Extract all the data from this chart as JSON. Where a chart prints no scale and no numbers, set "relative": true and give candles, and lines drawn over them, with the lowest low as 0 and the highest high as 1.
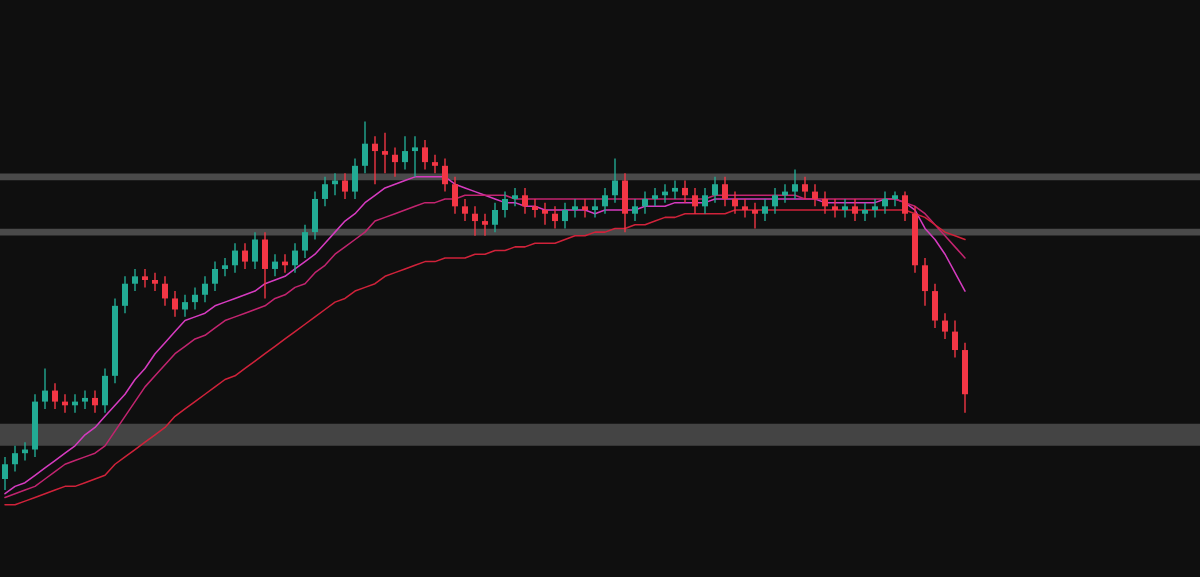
{
  "chart_data": {
    "type": "candlestick",
    "relative": true,
    "categories": [
      null,
      null,
      null,
      null,
      null,
      null,
      null,
      null,
      null,
      null,
      null,
      null,
      null,
      null,
      null,
      null,
      null,
      null,
      null,
      null,
      null,
      null,
      null,
      null,
      null,
      null,
      null,
      null,
      null,
      null,
      null,
      null,
      null,
      null,
      null,
      null,
      null,
      null,
      null,
      null,
      null,
      null,
      null,
      null,
      null,
      null,
      null,
      null,
      null,
      null,
      null,
      null,
      null,
      null,
      null,
      null,
      null,
      null,
      null,
      null,
      null,
      null,
      null,
      null,
      null,
      null,
      null,
      null,
      null,
      null,
      null,
      null,
      null,
      null,
      null,
      null,
      null,
      null,
      null,
      null,
      null,
      null,
      null,
      null,
      null,
      null,
      null,
      null,
      null,
      null,
      null,
      null,
      null,
      null,
      null,
      null,
      null
    ],
    "ohlc": [
      [
        0.03,
        0.09,
        0.0,
        0.07
      ],
      [
        0.07,
        0.12,
        0.05,
        0.1
      ],
      [
        0.1,
        0.13,
        0.08,
        0.11
      ],
      [
        0.11,
        0.26,
        0.09,
        0.24
      ],
      [
        0.24,
        0.33,
        0.22,
        0.27
      ],
      [
        0.27,
        0.29,
        0.22,
        0.24
      ],
      [
        0.24,
        0.26,
        0.21,
        0.23
      ],
      [
        0.23,
        0.26,
        0.21,
        0.24
      ],
      [
        0.24,
        0.27,
        0.22,
        0.25
      ],
      [
        0.25,
        0.27,
        0.21,
        0.23
      ],
      [
        0.23,
        0.33,
        0.21,
        0.31
      ],
      [
        0.31,
        0.52,
        0.29,
        0.5
      ],
      [
        0.5,
        0.58,
        0.48,
        0.56
      ],
      [
        0.56,
        0.6,
        0.54,
        0.58
      ],
      [
        0.58,
        0.6,
        0.55,
        0.57
      ],
      [
        0.57,
        0.59,
        0.54,
        0.56
      ],
      [
        0.56,
        0.58,
        0.5,
        0.52
      ],
      [
        0.52,
        0.54,
        0.47,
        0.49
      ],
      [
        0.49,
        0.53,
        0.47,
        0.51
      ],
      [
        0.51,
        0.55,
        0.49,
        0.53
      ],
      [
        0.53,
        0.58,
        0.51,
        0.56
      ],
      [
        0.56,
        0.62,
        0.54,
        0.6
      ],
      [
        0.6,
        0.63,
        0.58,
        0.61
      ],
      [
        0.61,
        0.67,
        0.59,
        0.65
      ],
      [
        0.65,
        0.67,
        0.6,
        0.62
      ],
      [
        0.62,
        0.7,
        0.6,
        0.68
      ],
      [
        0.68,
        0.7,
        0.52,
        0.6
      ],
      [
        0.6,
        0.64,
        0.58,
        0.62
      ],
      [
        0.62,
        0.64,
        0.59,
        0.61
      ],
      [
        0.61,
        0.67,
        0.59,
        0.65
      ],
      [
        0.65,
        0.72,
        0.63,
        0.7
      ],
      [
        0.7,
        0.81,
        0.68,
        0.79
      ],
      [
        0.79,
        0.85,
        0.77,
        0.83
      ],
      [
        0.83,
        0.86,
        0.8,
        0.84
      ],
      [
        0.84,
        0.86,
        0.79,
        0.81
      ],
      [
        0.81,
        0.9,
        0.79,
        0.88
      ],
      [
        0.88,
        1.0,
        0.86,
        0.94
      ],
      [
        0.94,
        0.96,
        0.83,
        0.92
      ],
      [
        0.92,
        0.97,
        0.86,
        0.91
      ],
      [
        0.91,
        0.93,
        0.85,
        0.89
      ],
      [
        0.89,
        0.96,
        0.87,
        0.92
      ],
      [
        0.92,
        0.96,
        0.85,
        0.93
      ],
      [
        0.93,
        0.95,
        0.87,
        0.89
      ],
      [
        0.89,
        0.91,
        0.86,
        0.88
      ],
      [
        0.88,
        0.9,
        0.81,
        0.83
      ],
      [
        0.83,
        0.85,
        0.75,
        0.77
      ],
      [
        0.77,
        0.79,
        0.73,
        0.75
      ],
      [
        0.75,
        0.77,
        0.69,
        0.73
      ],
      [
        0.73,
        0.75,
        0.69,
        0.72
      ],
      [
        0.72,
        0.78,
        0.7,
        0.76
      ],
      [
        0.76,
        0.81,
        0.74,
        0.79
      ],
      [
        0.79,
        0.82,
        0.77,
        0.8
      ],
      [
        0.8,
        0.82,
        0.75,
        0.77
      ],
      [
        0.77,
        0.79,
        0.74,
        0.76
      ],
      [
        0.76,
        0.78,
        0.72,
        0.75
      ],
      [
        0.75,
        0.77,
        0.71,
        0.73
      ],
      [
        0.73,
        0.78,
        0.71,
        0.76
      ],
      [
        0.76,
        0.79,
        0.74,
        0.77
      ],
      [
        0.77,
        0.79,
        0.74,
        0.76
      ],
      [
        0.76,
        0.79,
        0.74,
        0.77
      ],
      [
        0.77,
        0.82,
        0.75,
        0.8
      ],
      [
        0.8,
        0.9,
        0.78,
        0.84
      ],
      [
        0.84,
        0.86,
        0.7,
        0.75
      ],
      [
        0.75,
        0.79,
        0.73,
        0.77
      ],
      [
        0.77,
        0.81,
        0.75,
        0.79
      ],
      [
        0.79,
        0.82,
        0.77,
        0.8
      ],
      [
        0.8,
        0.83,
        0.78,
        0.81
      ],
      [
        0.81,
        0.84,
        0.79,
        0.82
      ],
      [
        0.82,
        0.84,
        0.78,
        0.8
      ],
      [
        0.8,
        0.82,
        0.75,
        0.77
      ],
      [
        0.77,
        0.82,
        0.75,
        0.8
      ],
      [
        0.8,
        0.85,
        0.78,
        0.83
      ],
      [
        0.83,
        0.85,
        0.77,
        0.79
      ],
      [
        0.79,
        0.81,
        0.75,
        0.77
      ],
      [
        0.77,
        0.79,
        0.74,
        0.76
      ],
      [
        0.76,
        0.78,
        0.71,
        0.75
      ],
      [
        0.75,
        0.79,
        0.73,
        0.77
      ],
      [
        0.77,
        0.82,
        0.75,
        0.8
      ],
      [
        0.8,
        0.83,
        0.78,
        0.81
      ],
      [
        0.81,
        0.87,
        0.79,
        0.83
      ],
      [
        0.83,
        0.85,
        0.79,
        0.81
      ],
      [
        0.81,
        0.83,
        0.77,
        0.79
      ],
      [
        0.79,
        0.81,
        0.75,
        0.77
      ],
      [
        0.77,
        0.79,
        0.74,
        0.76
      ],
      [
        0.76,
        0.79,
        0.74,
        0.77
      ],
      [
        0.77,
        0.79,
        0.73,
        0.75
      ],
      [
        0.75,
        0.78,
        0.73,
        0.76
      ],
      [
        0.76,
        0.79,
        0.74,
        0.77
      ],
      [
        0.77,
        0.81,
        0.75,
        0.79
      ],
      [
        0.79,
        0.81,
        0.77,
        0.8
      ],
      [
        0.8,
        0.81,
        0.73,
        0.75
      ],
      [
        0.75,
        0.77,
        0.59,
        0.61
      ],
      [
        0.61,
        0.63,
        0.5,
        0.54
      ],
      [
        0.54,
        0.56,
        0.44,
        0.46
      ],
      [
        0.46,
        0.48,
        0.41,
        0.43
      ],
      [
        0.43,
        0.46,
        0.36,
        0.38
      ],
      [
        0.38,
        0.4,
        0.21,
        0.26
      ]
    ],
    "series": [
      {
        "type": "line",
        "color": "#d63bc0",
        "values": [
          -0.01,
          0.01,
          0.02,
          0.04,
          0.06,
          0.08,
          0.1,
          0.12,
          0.15,
          0.17,
          0.2,
          0.23,
          0.26,
          0.3,
          0.33,
          0.37,
          0.4,
          0.43,
          0.46,
          0.47,
          0.48,
          0.5,
          0.51,
          0.52,
          0.53,
          0.54,
          0.56,
          0.57,
          0.58,
          0.6,
          0.62,
          0.64,
          0.67,
          0.7,
          0.73,
          0.75,
          0.78,
          0.8,
          0.82,
          0.83,
          0.84,
          0.85,
          0.85,
          0.85,
          0.85,
          0.83,
          0.82,
          0.81,
          0.8,
          0.79,
          0.78,
          0.78,
          0.77,
          0.77,
          0.76,
          0.76,
          0.76,
          0.76,
          0.76,
          0.75,
          0.76,
          0.76,
          0.76,
          0.76,
          0.77,
          0.77,
          0.77,
          0.78,
          0.78,
          0.78,
          0.78,
          0.79,
          0.79,
          0.79,
          0.79,
          0.79,
          0.79,
          0.79,
          0.79,
          0.79,
          0.79,
          0.79,
          0.78,
          0.78,
          0.78,
          0.78,
          0.78,
          0.78,
          0.79,
          0.79,
          0.78,
          0.76,
          0.71,
          0.68,
          0.64,
          0.59,
          0.54
        ]
      },
      {
        "type": "line",
        "color": "#c2246f",
        "values": [
          -0.02,
          -0.01,
          0.0,
          0.01,
          0.03,
          0.05,
          0.07,
          0.08,
          0.09,
          0.1,
          0.12,
          0.16,
          0.2,
          0.24,
          0.28,
          0.31,
          0.34,
          0.37,
          0.39,
          0.41,
          0.42,
          0.44,
          0.46,
          0.47,
          0.48,
          0.49,
          0.5,
          0.52,
          0.53,
          0.55,
          0.56,
          0.59,
          0.61,
          0.64,
          0.66,
          0.68,
          0.7,
          0.73,
          0.74,
          0.75,
          0.76,
          0.77,
          0.78,
          0.78,
          0.79,
          0.79,
          0.8,
          0.8,
          0.8,
          0.8,
          0.8,
          0.79,
          0.79,
          0.79,
          0.79,
          0.79,
          0.79,
          0.79,
          0.79,
          0.79,
          0.79,
          0.79,
          0.79,
          0.79,
          0.79,
          0.79,
          0.79,
          0.79,
          0.79,
          0.79,
          0.79,
          0.8,
          0.8,
          0.8,
          0.8,
          0.8,
          0.8,
          0.8,
          0.8,
          0.8,
          0.79,
          0.79,
          0.79,
          0.79,
          0.79,
          0.79,
          0.79,
          0.79,
          0.79,
          0.79,
          0.78,
          0.77,
          0.75,
          0.72,
          0.69,
          0.66,
          0.63
        ]
      },
      {
        "type": "line",
        "color": "#d0223a",
        "values": [
          -0.04,
          -0.04,
          -0.03,
          -0.02,
          -0.01,
          0.0,
          0.01,
          0.01,
          0.02,
          0.03,
          0.04,
          0.07,
          0.09,
          0.11,
          0.13,
          0.15,
          0.17,
          0.2,
          0.22,
          0.24,
          0.26,
          0.28,
          0.3,
          0.31,
          0.33,
          0.35,
          0.37,
          0.39,
          0.41,
          0.43,
          0.45,
          0.47,
          0.49,
          0.51,
          0.52,
          0.54,
          0.55,
          0.56,
          0.58,
          0.59,
          0.6,
          0.61,
          0.62,
          0.62,
          0.63,
          0.63,
          0.63,
          0.64,
          0.64,
          0.65,
          0.65,
          0.66,
          0.66,
          0.67,
          0.67,
          0.67,
          0.68,
          0.69,
          0.69,
          0.7,
          0.7,
          0.71,
          0.71,
          0.72,
          0.72,
          0.73,
          0.74,
          0.74,
          0.75,
          0.75,
          0.75,
          0.75,
          0.75,
          0.76,
          0.76,
          0.76,
          0.76,
          0.76,
          0.76,
          0.76,
          0.76,
          0.76,
          0.76,
          0.76,
          0.76,
          0.76,
          0.76,
          0.76,
          0.76,
          0.76,
          0.76,
          0.75,
          0.74,
          0.72,
          0.7,
          0.69,
          0.68
        ]
      }
    ],
    "bands": [
      {
        "axis": "y",
        "from": 0.12,
        "to": 0.18,
        "color": "#444444"
      }
    ],
    "ref_lines": [
      {
        "axis": "y",
        "value": 0.85,
        "color": "#4a4a4a"
      },
      {
        "axis": "y",
        "value": 0.7,
        "color": "#4a4a4a"
      }
    ]
  }
}
